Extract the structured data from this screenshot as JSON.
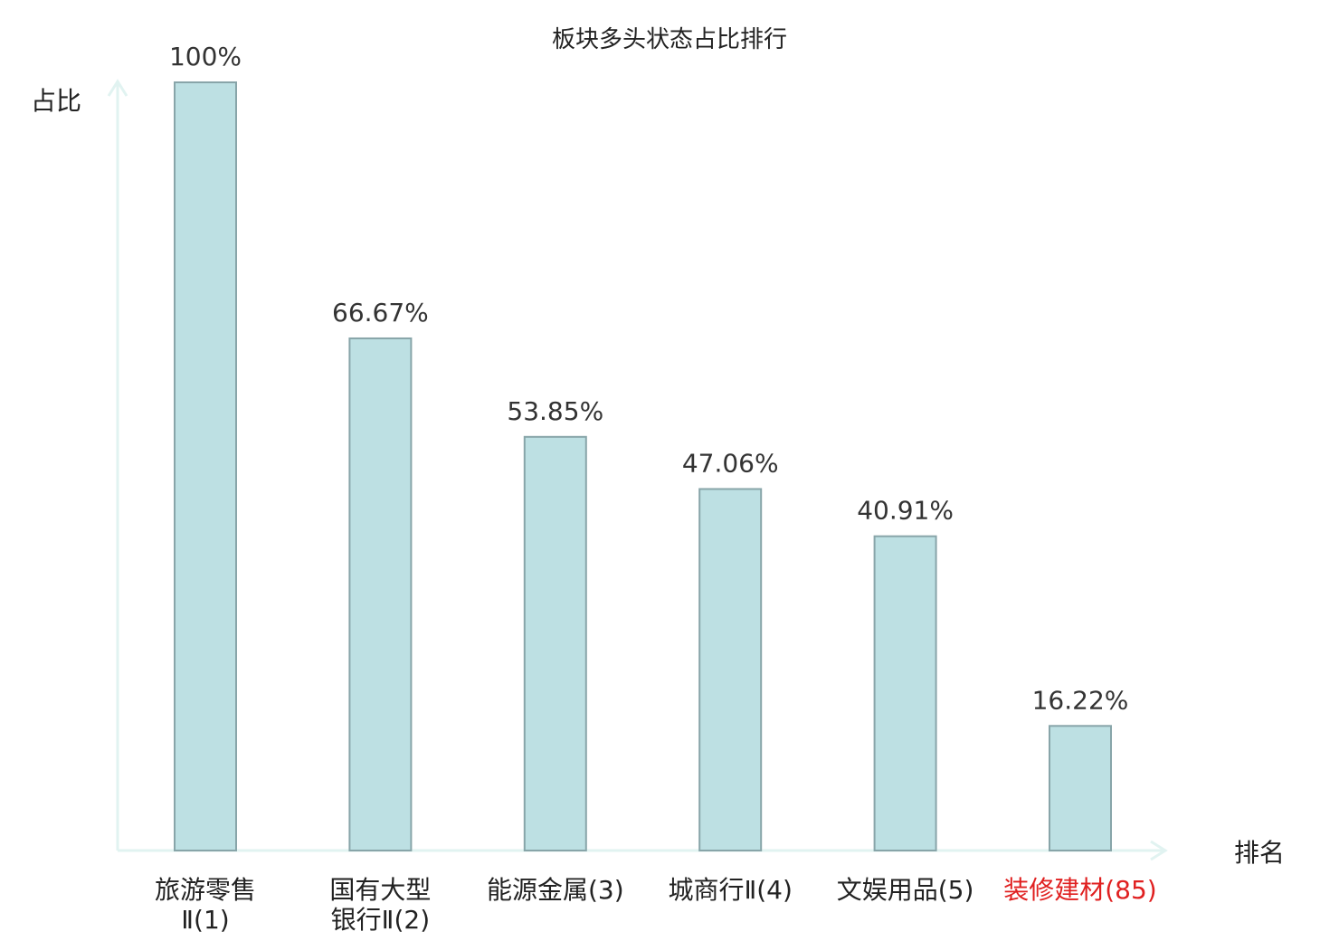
{
  "chart_data": {
    "type": "bar",
    "title": "板块多头状态占比排行",
    "ylabel": "占比",
    "xlabel": "排名",
    "ylim": [
      0,
      100
    ],
    "grid": false,
    "categories": [
      {
        "lines": [
          "旅游零售",
          "Ⅱ(1)"
        ],
        "highlight": false
      },
      {
        "lines": [
          "国有大型",
          "银行Ⅱ(2)"
        ],
        "highlight": false
      },
      {
        "lines": [
          "能源金属(3)"
        ],
        "highlight": false
      },
      {
        "lines": [
          "城商行Ⅱ(4)"
        ],
        "highlight": false
      },
      {
        "lines": [
          "文娱用品(5)"
        ],
        "highlight": false
      },
      {
        "lines": [
          "装修建材(85)"
        ],
        "highlight": true
      }
    ],
    "values": [
      100,
      66.67,
      53.85,
      47.06,
      40.91,
      16.22
    ],
    "value_labels": [
      "100%",
      "66.67%",
      "53.85%",
      "47.06%",
      "40.91%",
      "16.22%"
    ],
    "colors": {
      "bar_fill": "#bde0e3",
      "bar_stroke": "#88a5a9",
      "axis": "#e1f3f1",
      "highlight": "#e02020"
    }
  }
}
